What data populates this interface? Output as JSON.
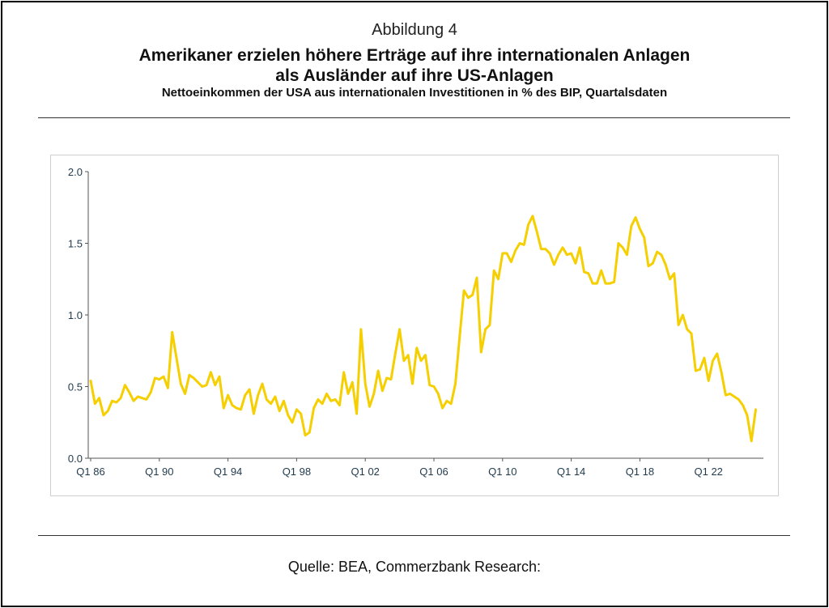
{
  "figure_label": "Abbildung 4",
  "title_line1": "Amerikaner erzielen höhere Erträge auf ihre internationalen Anlagen",
  "title_line2": "als Ausländer auf ihre US-Anlagen",
  "subtitle": "Nettoeinkommen der USA aus internationalen Investitionen in % des BIP, Quartalsdaten",
  "source": "Quelle: BEA, Commerzbank Research:",
  "colors": {
    "line": "#f5cf00",
    "axis": "#555555",
    "tick_text": "#1f3a4d",
    "frame": "#cfcfcf"
  },
  "chart_data": {
    "type": "line",
    "title": "",
    "xlabel": "",
    "ylabel": "",
    "ylim": [
      0.0,
      2.0
    ],
    "y_ticks": [
      "0.0",
      "0.5",
      "1.0",
      "1.5",
      "2.0"
    ],
    "x_tick_labels": [
      "Q1 86",
      "Q1 90",
      "Q1 94",
      "Q1 98",
      "Q1 02",
      "Q1 06",
      "Q1 10",
      "Q1 14",
      "Q1 18",
      "Q1 22"
    ],
    "x_start": "Q1 86",
    "frequency": "quarterly",
    "grid": false,
    "legend": "none",
    "series": [
      {
        "values": [
          0.54,
          0.38,
          0.42,
          0.3,
          0.33,
          0.4,
          0.39,
          0.42,
          0.51,
          0.46,
          0.4,
          0.43,
          0.42,
          0.41,
          0.46,
          0.56,
          0.55,
          0.57,
          0.49,
          0.88,
          0.7,
          0.52,
          0.45,
          0.58,
          0.56,
          0.53,
          0.5,
          0.51,
          0.6,
          0.51,
          0.57,
          0.35,
          0.44,
          0.37,
          0.35,
          0.34,
          0.44,
          0.48,
          0.31,
          0.44,
          0.52,
          0.41,
          0.38,
          0.43,
          0.33,
          0.4,
          0.3,
          0.25,
          0.34,
          0.31,
          0.16,
          0.18,
          0.35,
          0.41,
          0.38,
          0.45,
          0.4,
          0.41,
          0.37,
          0.6,
          0.45,
          0.53,
          0.31,
          0.9,
          0.52,
          0.36,
          0.45,
          0.61,
          0.47,
          0.56,
          0.55,
          0.73,
          0.9,
          0.68,
          0.72,
          0.52,
          0.77,
          0.68,
          0.72,
          0.51,
          0.5,
          0.45,
          0.35,
          0.4,
          0.38,
          0.52,
          0.85,
          1.17,
          1.12,
          1.14,
          1.26,
          0.74,
          0.9,
          0.93,
          1.31,
          1.25,
          1.43,
          1.43,
          1.37,
          1.45,
          1.5,
          1.49,
          1.63,
          1.69,
          1.58,
          1.46,
          1.46,
          1.43,
          1.35,
          1.42,
          1.47,
          1.42,
          1.43,
          1.36,
          1.47,
          1.3,
          1.29,
          1.22,
          1.22,
          1.31,
          1.22,
          1.22,
          1.23,
          1.5,
          1.47,
          1.42,
          1.62,
          1.68,
          1.6,
          1.54,
          1.34,
          1.36,
          1.44,
          1.42,
          1.35,
          1.25,
          1.29,
          0.93,
          1.0,
          0.9,
          0.87,
          0.61,
          0.62,
          0.7,
          0.54,
          0.68,
          0.73,
          0.6,
          0.44,
          0.45,
          0.43,
          0.41,
          0.37,
          0.3,
          0.12,
          0.34
        ]
      }
    ]
  }
}
